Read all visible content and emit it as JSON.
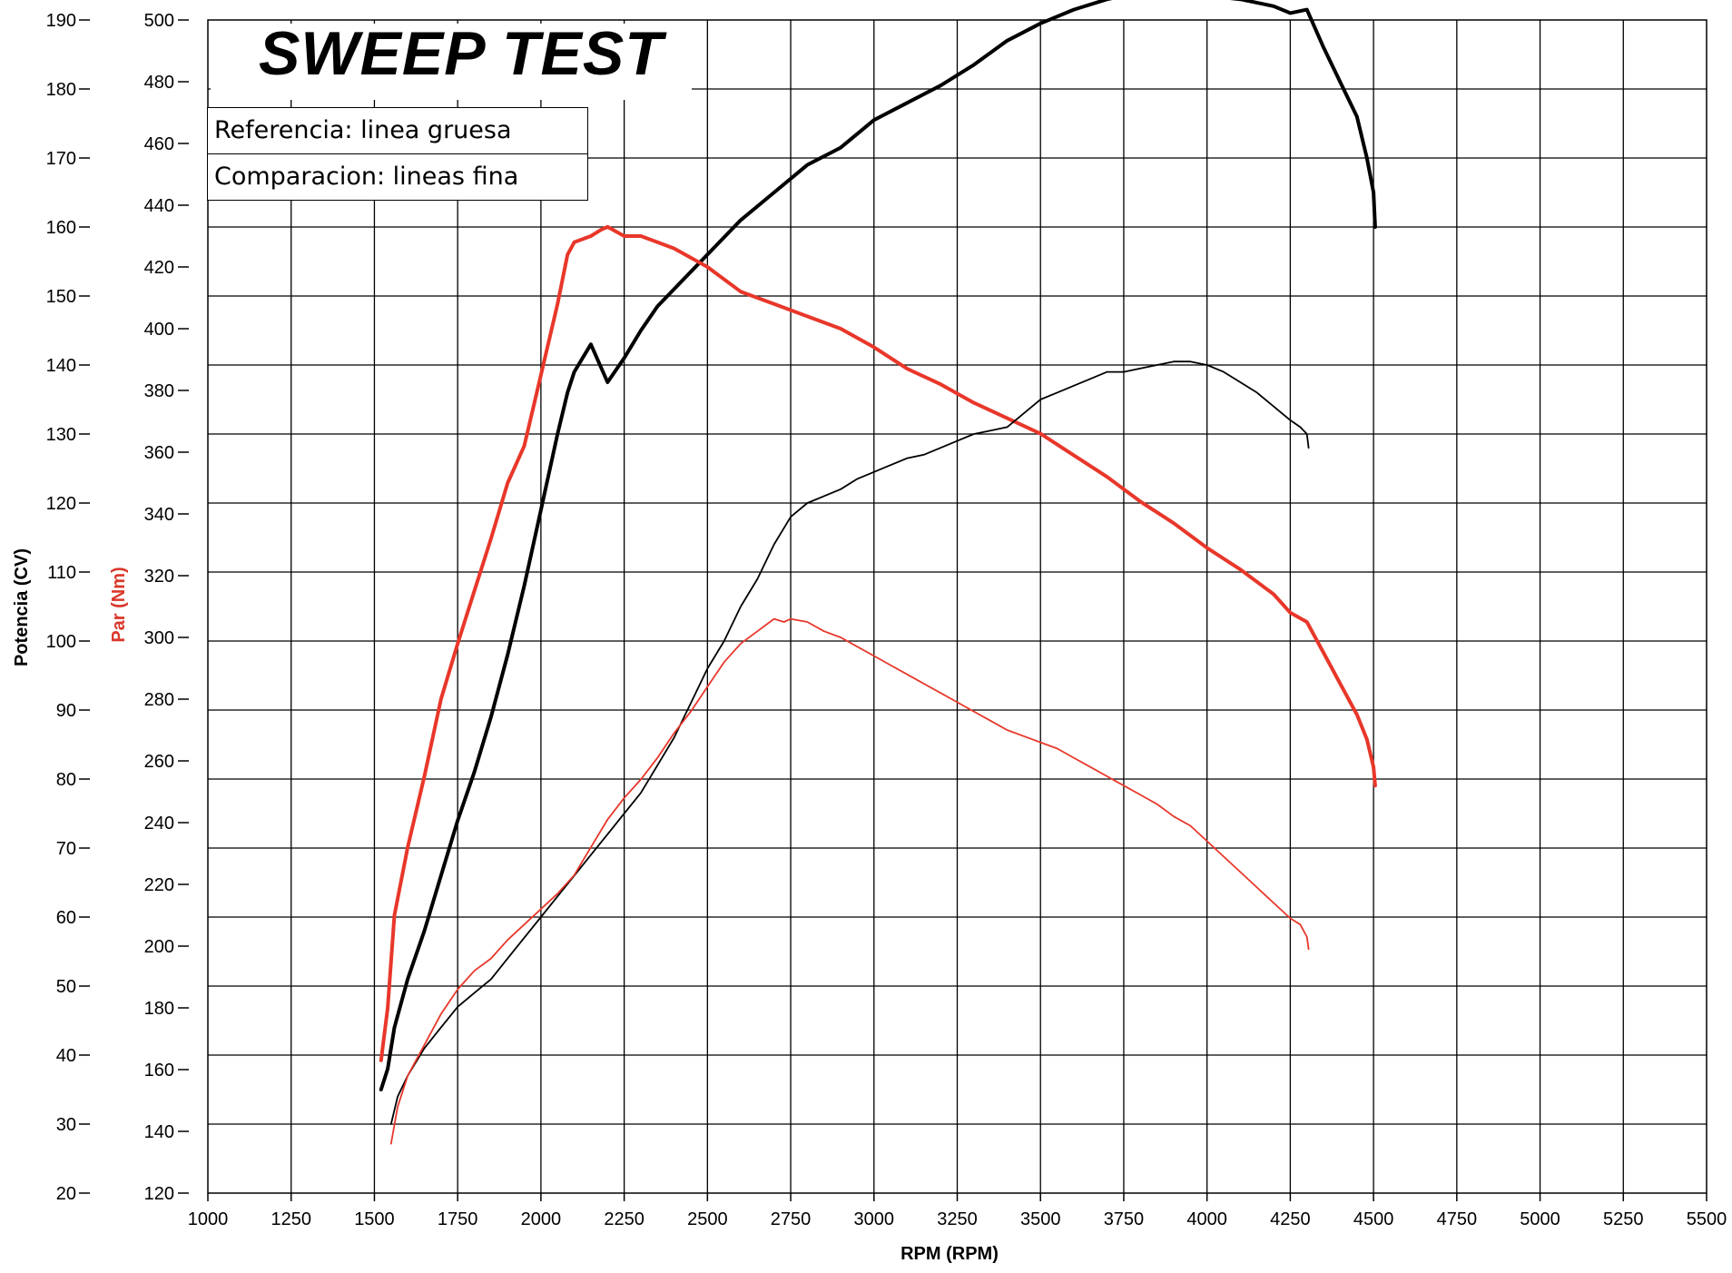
{
  "chart_data": {
    "type": "line",
    "title": "SWEEP TEST",
    "xlabel": "RPM (RPM)",
    "ylabel_left": "Potencia (CV)",
    "ylabel_right": "Par (Nm)",
    "xlim": [
      1000,
      5500
    ],
    "xticks": [
      1000,
      1250,
      1500,
      1750,
      2000,
      2250,
      2500,
      2750,
      3000,
      3250,
      3500,
      3750,
      4000,
      4250,
      4500,
      4750,
      5000,
      5250,
      5500
    ],
    "power_axis": {
      "lim": [
        20,
        190
      ],
      "ticks": [
        20,
        30,
        40,
        50,
        60,
        70,
        80,
        90,
        100,
        110,
        120,
        130,
        140,
        150,
        160,
        170,
        180,
        190
      ]
    },
    "torque_axis": {
      "lim": [
        120,
        500
      ],
      "ticks": [
        120,
        140,
        160,
        180,
        200,
        220,
        240,
        260,
        280,
        300,
        320,
        340,
        360,
        380,
        400,
        420,
        440,
        460,
        480,
        500
      ]
    },
    "legend": [
      "Referencia: linea gruesa",
      "Comparacion: lineas fina"
    ],
    "series": [
      {
        "name": "Potencia referencia",
        "axis": "power",
        "style": "thick",
        "color": "#000000",
        "x": [
          1520,
          1540,
          1560,
          1600,
          1650,
          1700,
          1750,
          1800,
          1850,
          1900,
          1950,
          2000,
          2050,
          2080,
          2100,
          2150,
          2200,
          2250,
          2300,
          2350,
          2400,
          2500,
          2600,
          2700,
          2800,
          2900,
          3000,
          3100,
          3200,
          3300,
          3400,
          3500,
          3600,
          3700,
          3800,
          3900,
          4000,
          4100,
          4200,
          4250,
          4300,
          4350,
          4400,
          4450,
          4480,
          4500,
          4505
        ],
        "values": [
          35,
          38,
          44,
          51,
          58,
          66,
          74,
          81,
          89,
          98,
          108,
          119,
          130,
          136,
          139,
          143,
          137.5,
          141,
          145,
          148.5,
          151,
          156,
          161,
          165,
          169,
          171.5,
          175.5,
          178,
          180.5,
          183.5,
          187,
          189.5,
          191.5,
          193,
          194,
          193.5,
          193.5,
          193,
          192,
          191,
          191.5,
          186,
          181,
          176,
          170,
          165,
          160
        ]
      },
      {
        "name": "Par referencia",
        "axis": "torque",
        "style": "thick",
        "color": "#e8372a",
        "x": [
          1520,
          1540,
          1560,
          1600,
          1650,
          1700,
          1750,
          1800,
          1850,
          1900,
          1950,
          2000,
          2050,
          2080,
          2100,
          2150,
          2180,
          2200,
          2250,
          2300,
          2350,
          2400,
          2500,
          2600,
          2700,
          2800,
          2900,
          3000,
          3100,
          3200,
          3300,
          3400,
          3500,
          3600,
          3700,
          3800,
          3900,
          4000,
          4100,
          4200,
          4250,
          4300,
          4350,
          4400,
          4450,
          4480,
          4500,
          4505
        ],
        "values": [
          163,
          180,
          210,
          232,
          255,
          280,
          298,
          315,
          332,
          350,
          362,
          385,
          408,
          424,
          428,
          430,
          432,
          433,
          430,
          430,
          428,
          426,
          420,
          412,
          408,
          404,
          400,
          394,
          387,
          382,
          376,
          371,
          366,
          359,
          352,
          344,
          337,
          329,
          322,
          314,
          308,
          305,
          295,
          285,
          275,
          267,
          258,
          252
        ]
      },
      {
        "name": "Potencia comparacion",
        "axis": "power",
        "style": "thin",
        "color": "#000000",
        "x": [
          1550,
          1570,
          1600,
          1650,
          1700,
          1750,
          1800,
          1850,
          1900,
          1950,
          2000,
          2050,
          2100,
          2150,
          2200,
          2250,
          2300,
          2350,
          2400,
          2450,
          2500,
          2550,
          2600,
          2650,
          2700,
          2750,
          2800,
          2850,
          2900,
          2950,
          3000,
          3050,
          3100,
          3150,
          3200,
          3250,
          3300,
          3350,
          3400,
          3450,
          3500,
          3550,
          3600,
          3650,
          3700,
          3750,
          3800,
          3850,
          3900,
          3950,
          4000,
          4050,
          4100,
          4150,
          4200,
          4250,
          4280,
          4300,
          4305
        ],
        "values": [
          30,
          34,
          37,
          41,
          44,
          47,
          49,
          51,
          54,
          57,
          60,
          63,
          66,
          69,
          72,
          75,
          78,
          82,
          86,
          91,
          96,
          100,
          105,
          109,
          114,
          118,
          120,
          121,
          122,
          123.5,
          124.5,
          125.5,
          126.5,
          127,
          128,
          129,
          130,
          130.5,
          131,
          133,
          135,
          136,
          137,
          138,
          139,
          139,
          139.5,
          140,
          140.5,
          140.5,
          140,
          139,
          137.5,
          136,
          134,
          132,
          131,
          130,
          128
        ]
      },
      {
        "name": "Par comparacion",
        "axis": "torque",
        "style": "thin",
        "color": "#e8372a",
        "x": [
          1550,
          1570,
          1600,
          1650,
          1700,
          1750,
          1800,
          1850,
          1900,
          1950,
          2000,
          2050,
          2100,
          2150,
          2200,
          2250,
          2300,
          2350,
          2400,
          2450,
          2500,
          2550,
          2600,
          2650,
          2700,
          2730,
          2750,
          2800,
          2850,
          2900,
          2950,
          3000,
          3050,
          3100,
          3150,
          3200,
          3250,
          3300,
          3350,
          3400,
          3450,
          3500,
          3550,
          3600,
          3650,
          3700,
          3750,
          3800,
          3850,
          3900,
          3950,
          4000,
          4050,
          4100,
          4150,
          4200,
          4250,
          4280,
          4300,
          4305
        ],
        "values": [
          136,
          148,
          158,
          168,
          178,
          186,
          192,
          196,
          202,
          207,
          212,
          217,
          223,
          232,
          241,
          248,
          254,
          261,
          269,
          276,
          284,
          292,
          298,
          302,
          306,
          305,
          306,
          305,
          302,
          300,
          297,
          294,
          291,
          288,
          285,
          282,
          279,
          276,
          273,
          270,
          268,
          266,
          264,
          261,
          258,
          255,
          252,
          249,
          246,
          242,
          239,
          234,
          229,
          224,
          219,
          214,
          209,
          207,
          203,
          199
        ]
      }
    ]
  }
}
